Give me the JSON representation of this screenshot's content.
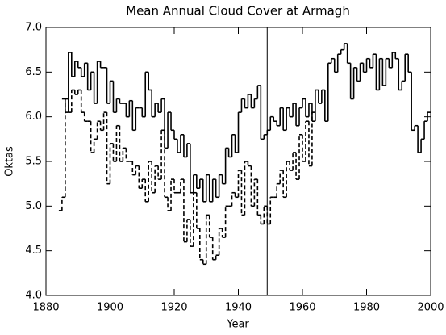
{
  "chart_data": {
    "type": "step",
    "title": "Mean Annual Cloud Cover at Armagh",
    "x_label": "Year",
    "y_label": "Oktas",
    "x": [
      1884,
      1885,
      1886,
      1887,
      1888,
      1889,
      1890,
      1891,
      1892,
      1893,
      1894,
      1895,
      1896,
      1897,
      1898,
      1899,
      1900,
      1901,
      1902,
      1903,
      1904,
      1905,
      1906,
      1907,
      1908,
      1909,
      1910,
      1911,
      1912,
      1913,
      1914,
      1915,
      1916,
      1917,
      1918,
      1919,
      1920,
      1921,
      1922,
      1923,
      1924,
      1925,
      1926,
      1927,
      1928,
      1929,
      1930,
      1931,
      1932,
      1933,
      1934,
      1935,
      1936,
      1937,
      1938,
      1939,
      1940,
      1941,
      1942,
      1943,
      1944,
      1945,
      1946,
      1947,
      1948,
      1949,
      1950,
      1951,
      1952,
      1953,
      1954,
      1955,
      1956,
      1957,
      1958,
      1959,
      1960,
      1961,
      1962,
      1963,
      1964,
      1965,
      1966,
      1967,
      1968,
      1969,
      1970,
      1971,
      1972,
      1973,
      1974,
      1975,
      1976,
      1977,
      1978,
      1979,
      1980,
      1981,
      1982,
      1983,
      1984,
      1985,
      1986,
      1987,
      1988,
      1989,
      1990,
      1991,
      1992,
      1993,
      1994,
      1995,
      1996,
      1997,
      1998,
      1999
    ],
    "series": [
      {
        "color": "#000000",
        "style": "solid",
        "values": [
          null,
          6.2,
          6.05,
          6.72,
          6.45,
          6.62,
          6.55,
          6.45,
          6.6,
          6.3,
          6.5,
          6.15,
          6.62,
          6.55,
          6.55,
          6.15,
          6.4,
          6.05,
          6.2,
          6.15,
          6.15,
          6.0,
          6.18,
          5.85,
          6.1,
          6.1,
          6.0,
          6.5,
          6.3,
          6.0,
          6.15,
          6.05,
          6.2,
          5.65,
          6.05,
          5.85,
          5.75,
          5.6,
          5.8,
          5.55,
          5.7,
          5.15,
          5.35,
          5.2,
          5.3,
          5.05,
          5.35,
          5.05,
          5.3,
          5.1,
          5.35,
          5.25,
          5.65,
          5.55,
          5.8,
          5.6,
          6.05,
          6.2,
          6.1,
          6.25,
          6.1,
          6.2,
          6.35,
          5.75,
          5.8,
          5.85,
          6.0,
          5.95,
          5.9,
          6.1,
          5.85,
          6.1,
          6.0,
          6.15,
          5.9,
          6.1,
          6.2,
          6.0,
          6.15,
          5.95,
          6.3,
          6.15,
          6.3,
          5.95,
          6.6,
          6.65,
          6.5,
          6.7,
          6.75,
          6.82,
          6.6,
          6.2,
          6.55,
          6.4,
          6.6,
          6.5,
          6.65,
          6.55,
          6.7,
          6.3,
          6.65,
          6.35,
          6.65,
          6.55,
          6.72,
          6.65,
          6.3,
          6.4,
          6.7,
          6.5,
          5.85,
          5.9,
          5.6,
          5.75,
          5.95,
          6.05
        ]
      },
      {
        "color": "#000000",
        "style": "dashed",
        "values": [
          4.95,
          5.1,
          6.2,
          6.05,
          6.3,
          6.25,
          6.3,
          6.05,
          5.95,
          5.95,
          5.6,
          5.75,
          5.95,
          5.85,
          6.05,
          5.25,
          5.7,
          5.5,
          5.9,
          5.5,
          5.65,
          5.5,
          5.5,
          5.35,
          5.45,
          5.2,
          5.3,
          5.05,
          5.5,
          5.15,
          5.45,
          5.3,
          5.85,
          5.1,
          4.95,
          5.3,
          5.15,
          5.15,
          5.3,
          4.6,
          4.85,
          4.55,
          5.15,
          4.75,
          4.4,
          4.35,
          4.9,
          4.65,
          4.4,
          4.45,
          4.75,
          4.65,
          5.0,
          5.0,
          5.15,
          5.1,
          5.4,
          4.9,
          5.5,
          5.45,
          5.0,
          5.3,
          4.9,
          4.8,
          5.0,
          4.8,
          5.1,
          5.1,
          5.25,
          5.4,
          5.1,
          5.5,
          5.4,
          5.6,
          5.3,
          5.8,
          5.5,
          5.95,
          5.45,
          6.05,
          null,
          null,
          null,
          null,
          null,
          null,
          null,
          null,
          null,
          null,
          null,
          null,
          null,
          null,
          null,
          null,
          null,
          null,
          null,
          null,
          null,
          null,
          null,
          null,
          null,
          null,
          null,
          null,
          null,
          null,
          null,
          null,
          null,
          null,
          null,
          null
        ]
      }
    ],
    "vline": 1949,
    "xlim": [
      1880,
      2000
    ],
    "xticks": [
      1880,
      1900,
      1920,
      1940,
      1960,
      1980,
      2000
    ],
    "ylim": [
      4,
      7
    ],
    "yticks": [
      {
        "value": 4,
        "label": "4.0"
      },
      {
        "value": 4.5,
        "label": "4.5"
      },
      {
        "value": 5,
        "label": "5.0"
      },
      {
        "value": 5.5,
        "label": "5.5"
      },
      {
        "value": 6,
        "label": "6.0"
      },
      {
        "value": 6.5,
        "label": "6.5"
      },
      {
        "value": 7,
        "label": "7.0"
      }
    ],
    "grid": false
  }
}
